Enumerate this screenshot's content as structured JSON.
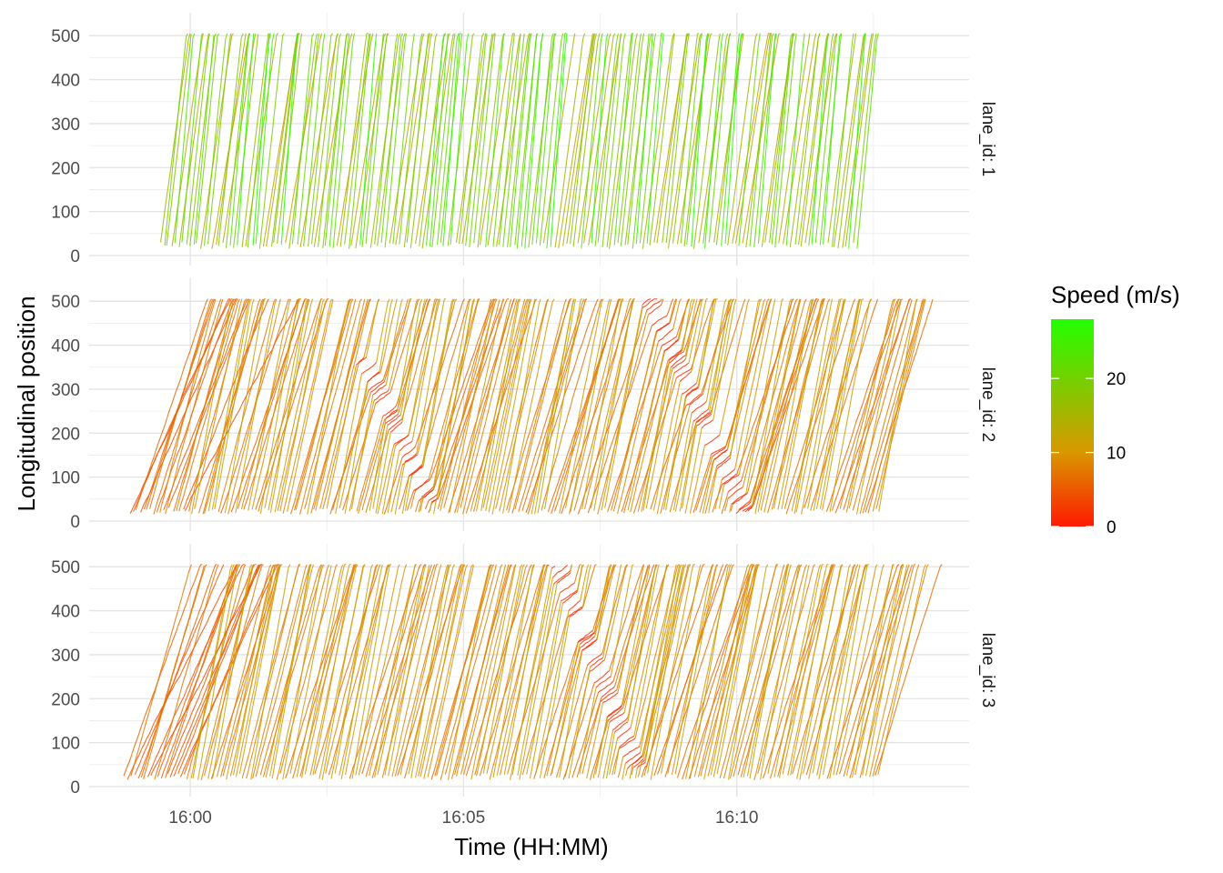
{
  "chart_data": {
    "type": "line",
    "x_axis": {
      "label": "Time (HH:MM)",
      "range_minutes": [
        -1.85,
        14.25
      ],
      "ticks": [
        {
          "minute": 0,
          "label": "16:00"
        },
        {
          "minute": 5,
          "label": "16:05"
        },
        {
          "minute": 10,
          "label": "16:10"
        }
      ]
    },
    "y_axis": {
      "label": "Longitudinal position",
      "range": [
        0,
        520
      ],
      "ticks": [
        0,
        100,
        200,
        300,
        400,
        500
      ]
    },
    "grid": true,
    "facets": [
      {
        "strip_label": "lane_id: 1",
        "first_vehicle_minute": -0.55,
        "last_vehicle_minute": 12.2,
        "mean_speed": 17,
        "congestion_waves": []
      },
      {
        "strip_label": "lane_id: 2",
        "first_vehicle_minute": -1.1,
        "last_vehicle_minute": 12.6,
        "mean_speed": 9,
        "congestion_waves": [
          {
            "start_minute": 3.2,
            "start_position": 360,
            "end_minute": 4.3,
            "end_position": 60
          },
          {
            "start_minute": 8.4,
            "start_position": 500,
            "end_minute": 10.1,
            "end_position": 30
          }
        ]
      },
      {
        "strip_label": "lane_id: 3",
        "first_vehicle_minute": -1.2,
        "last_vehicle_minute": 12.6,
        "mean_speed": 9,
        "congestion_waves": [
          {
            "start_minute": 6.7,
            "start_position": 500,
            "end_minute": 8.1,
            "end_position": 60
          }
        ]
      }
    ],
    "legend": {
      "title": "Speed (m/s)",
      "placement": "right",
      "range": [
        0,
        28
      ],
      "ticks": [
        0,
        10,
        20
      ],
      "colors": {
        "low": "#ff1a00",
        "mid": "#d99800",
        "high": "#22ff00"
      }
    }
  },
  "labels": {
    "ylabel": "Longitudinal position",
    "xlabel": "Time (HH:MM)",
    "legend_title": "Speed (m/s)"
  }
}
